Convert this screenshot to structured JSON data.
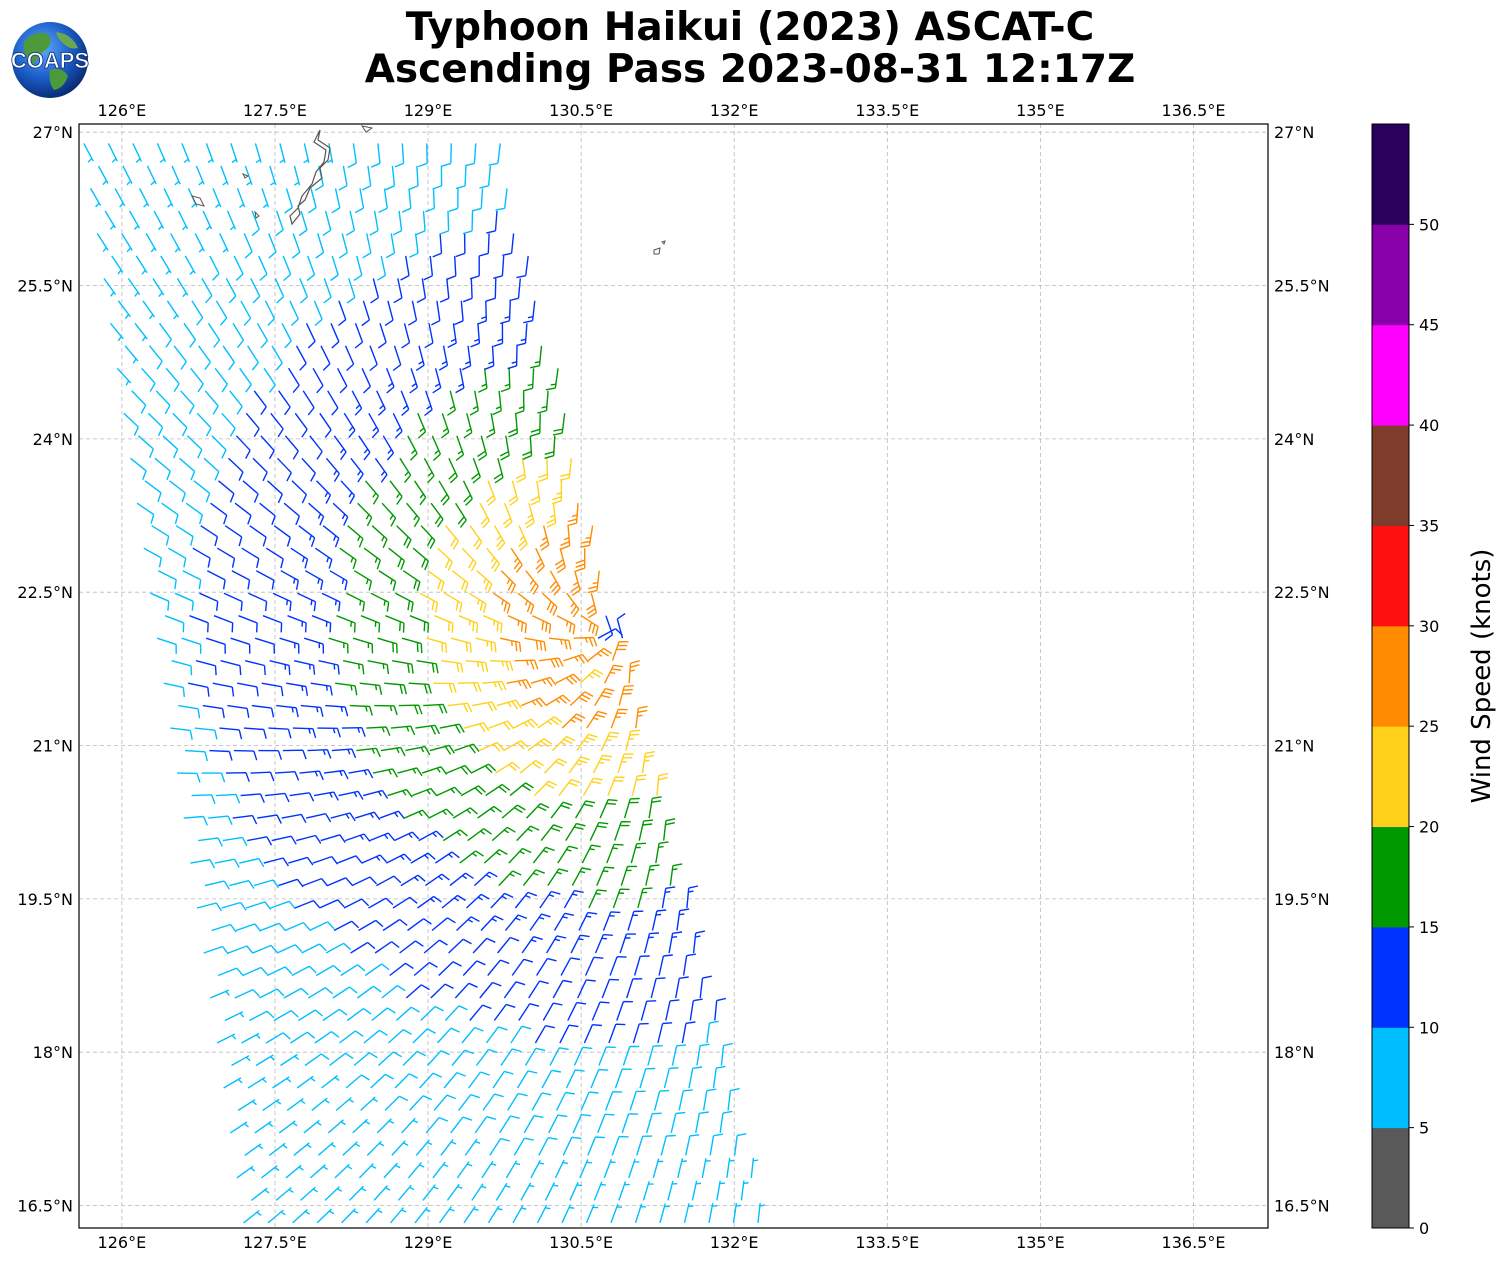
{
  "header": {
    "title_line_1": "Typhoon Haikui (2023) ASCAT-C",
    "title_line_2": "Ascending Pass 2023-08-31 12:17Z",
    "logo_text": "COAPS"
  },
  "map": {
    "lon_range": [
      125.58,
      137.23
    ],
    "lat_range": [
      16.28,
      27.08
    ],
    "lon_ticks": [
      "126°E",
      "127.5°E",
      "129°E",
      "130.5°E",
      "132°E",
      "133.5°E",
      "135°E",
      "136.5°E"
    ],
    "lat_ticks": [
      "27°N",
      "25.5°N",
      "24°N",
      "22.5°N",
      "21°N",
      "19.5°N",
      "18°N",
      "16.5°N"
    ],
    "gridlines": true,
    "storm_center": {
      "lon": 130.8,
      "lat": 22.2
    },
    "swath": {
      "lon_west_at_top": 125.6,
      "lon_east_at_top": 129.7,
      "lon_west_at_bottom": 127.2,
      "lon_east_at_bottom": 132.3
    }
  },
  "colorbar": {
    "label": "Wind Speed (knots)",
    "bins": [
      {
        "min": 0,
        "max": 5,
        "color": "#595959"
      },
      {
        "min": 5,
        "max": 10,
        "color": "#00bfff"
      },
      {
        "min": 10,
        "max": 15,
        "color": "#0033ff"
      },
      {
        "min": 15,
        "max": 20,
        "color": "#009900"
      },
      {
        "min": 20,
        "max": 25,
        "color": "#ffd11a"
      },
      {
        "min": 25,
        "max": 30,
        "color": "#ff8c00"
      },
      {
        "min": 30,
        "max": 35,
        "color": "#ff1010"
      },
      {
        "min": 35,
        "max": 40,
        "color": "#7f3c2a"
      },
      {
        "min": 40,
        "max": 45,
        "color": "#ff00ff"
      },
      {
        "min": 45,
        "max": 50,
        "color": "#8800aa"
      },
      {
        "min": 50,
        "max": 55,
        "color": "#2b005c"
      }
    ],
    "tick_labels": [
      "0",
      "5",
      "10",
      "15",
      "20",
      "25",
      "30",
      "35",
      "40",
      "45",
      "50"
    ]
  }
}
